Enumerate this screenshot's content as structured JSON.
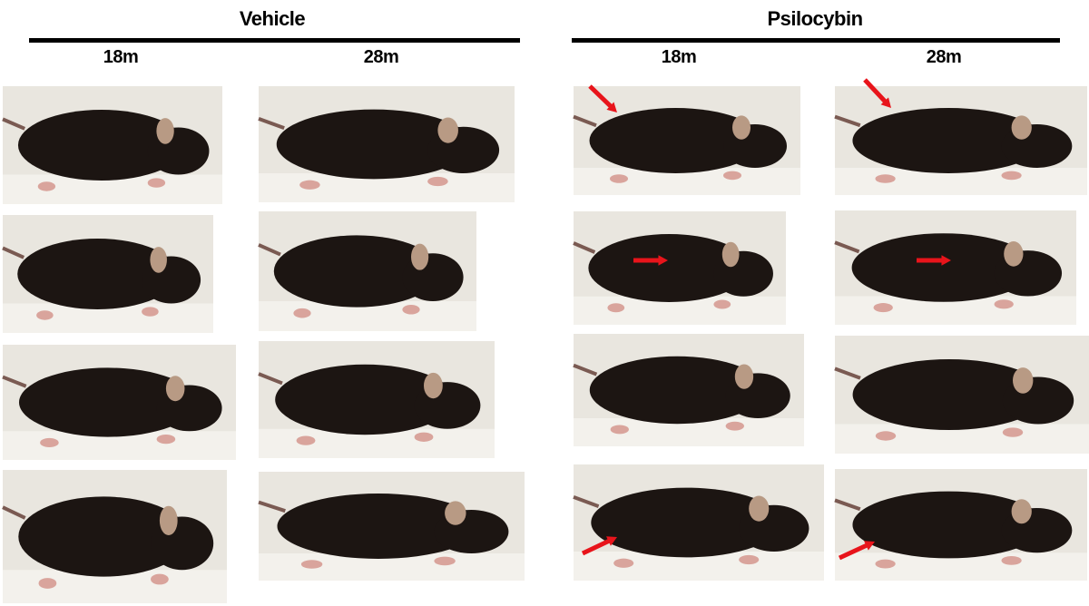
{
  "groups": [
    {
      "title": "Vehicle",
      "ages": [
        "18m",
        "28m"
      ]
    },
    {
      "title": "Psilocybin",
      "ages": [
        "18m",
        "28m"
      ]
    }
  ],
  "colors": {
    "arrow": "#e8141b",
    "rule": "#000000",
    "photo_background": "#e9e6df",
    "mouse_fur": "#1c1512",
    "ear": "#b89a84"
  },
  "annotations": "red arrows mark regions of fur on psilocybin-treated mice"
}
